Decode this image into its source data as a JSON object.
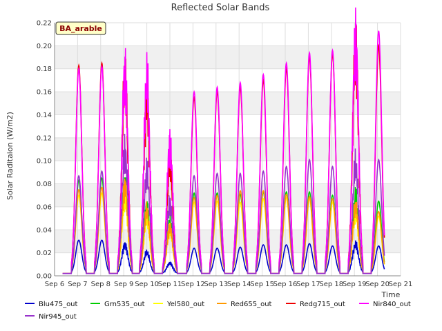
{
  "chart_data": {
    "type": "line",
    "title": "Reflected Solar Bands",
    "xlabel": "Time",
    "ylabel": "Solar Raditaion (W/m2)",
    "site_badge": "BA_arable",
    "xlim": [
      6,
      21
    ],
    "ylim": [
      0,
      0.22
    ],
    "x_ticks": [
      {
        "v": 6,
        "label": "Sep 6"
      },
      {
        "v": 7,
        "label": "Sep 7"
      },
      {
        "v": 8,
        "label": "Sep 8"
      },
      {
        "v": 9,
        "label": "Sep 9"
      },
      {
        "v": 10,
        "label": "Sep 10"
      },
      {
        "v": 11,
        "label": "Sep 11"
      },
      {
        "v": 12,
        "label": "Sep 12"
      },
      {
        "v": 13,
        "label": "Sep 13"
      },
      {
        "v": 14,
        "label": "Sep 14"
      },
      {
        "v": 15,
        "label": "Sep 15"
      },
      {
        "v": 16,
        "label": "Sep 16"
      },
      {
        "v": 17,
        "label": "Sep 17"
      },
      {
        "v": 18,
        "label": "Sep 18"
      },
      {
        "v": 19,
        "label": "Sep 19"
      },
      {
        "v": 20,
        "label": "Sep 20"
      },
      {
        "v": 21,
        "label": "Sep 21"
      }
    ],
    "y_ticks": [
      "0.00",
      "0.02",
      "0.04",
      "0.06",
      "0.08",
      "0.10",
      "0.12",
      "0.14",
      "0.16",
      "0.18",
      "0.20",
      "0.22"
    ],
    "grid": true,
    "legend_position": "bottom",
    "x_start": 6.35,
    "x_end": 20.3,
    "baseline": 0.002,
    "day_centers": [
      7.05,
      8.05,
      9.05,
      10.0,
      11.0,
      12.05,
      13.05,
      14.05,
      15.05,
      16.05,
      17.05,
      18.05,
      19.05,
      20.05
    ],
    "series": [
      {
        "name": "Blu475_out",
        "color": "#0000cc",
        "peaks": [
          0.031,
          0.031,
          0.027,
          0.02,
          0.011,
          0.024,
          0.024,
          0.025,
          0.027,
          0.027,
          0.028,
          0.026,
          0.027,
          0.026
        ]
      },
      {
        "name": "Grn535_out",
        "color": "#00cc00",
        "peaks": [
          0.083,
          0.085,
          0.075,
          0.06,
          0.045,
          0.072,
          0.072,
          0.071,
          0.073,
          0.073,
          0.073,
          0.07,
          0.067,
          0.065
        ]
      },
      {
        "name": "Yel580_out",
        "color": "#ffff00",
        "peaks": [
          0.07,
          0.072,
          0.067,
          0.05,
          0.04,
          0.064,
          0.065,
          0.064,
          0.067,
          0.068,
          0.067,
          0.064,
          0.055,
          0.052
        ]
      },
      {
        "name": "Red655_out",
        "color": "#ff9900",
        "peaks": [
          0.075,
          0.077,
          0.078,
          0.055,
          0.042,
          0.068,
          0.07,
          0.074,
          0.074,
          0.071,
          0.069,
          0.067,
          0.059,
          0.056
        ]
      },
      {
        "name": "Redg715_out",
        "color": "#ee0000",
        "peaks": [
          0.183,
          0.185,
          0.168,
          0.155,
          0.095,
          0.155,
          0.16,
          0.164,
          0.17,
          0.18,
          0.19,
          0.193,
          0.195,
          0.2
        ]
      },
      {
        "name": "Nir840_out",
        "color": "#ff00ff",
        "peaks": [
          0.18,
          0.182,
          0.178,
          0.168,
          0.115,
          0.16,
          0.164,
          0.168,
          0.175,
          0.185,
          0.194,
          0.196,
          0.207,
          0.213
        ]
      },
      {
        "name": "Nir945_out",
        "color": "#9933cc",
        "peaks": [
          0.087,
          0.091,
          0.107,
          0.09,
          0.062,
          0.087,
          0.089,
          0.089,
          0.091,
          0.095,
          0.101,
          0.095,
          0.095,
          0.101
        ]
      }
    ]
  }
}
